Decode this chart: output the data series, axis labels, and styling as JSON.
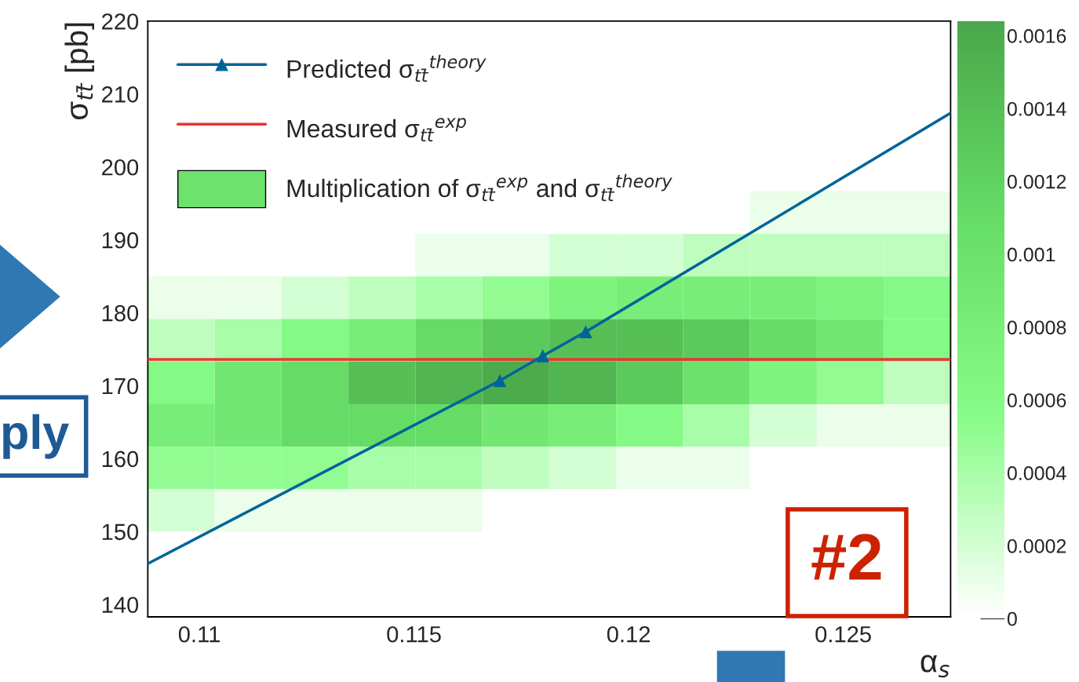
{
  "chart_data": [
    {
      "type": "line",
      "xlabel": "α$_{s}$",
      "ylabel": "σ$_{tt̄}$ [pb]",
      "xlim": [
        0.1088,
        0.1275
      ],
      "ylim": [
        138.3,
        220
      ],
      "xticks": [
        0.11,
        0.115,
        0.12,
        0.125
      ],
      "yticks": [
        140,
        150,
        160,
        170,
        180,
        190,
        200,
        210,
        220
      ],
      "legend": "top left",
      "grid": false,
      "series": [
        {
          "type": "line",
          "name": "Predicted σ$_{tt̄}$$^{theory}$",
          "color": "#00649a",
          "marker": "triangle",
          "x": [
            0.1088,
            0.117,
            0.118,
            0.119,
            0.1275
          ],
          "values": [
            145.6,
            170.7,
            174.1,
            177.4,
            207.4
          ]
        }
      ],
      "ref_lines": [
        {
          "axis": "y",
          "value": 173.6,
          "label": "Measured σ$_{tt̄}$$^{exp}$",
          "color": "#ee3333"
        }
      ],
      "annotations": [
        "Multiplication of σ$_{tt̄}$$^{exp}$ and σ$_{tt̄}$$^{theory}$",
        "ply",
        "#2"
      ]
    },
    {
      "type": "heatmap",
      "clim": [
        0,
        0.00164
      ],
      "cticks": [
        0,
        0.0002,
        0.0004,
        0.0006,
        0.0008,
        0.001,
        0.0012,
        0.0014,
        0.0016
      ],
      "categories": [
        null,
        null,
        null,
        null,
        null,
        null,
        null,
        null,
        null,
        null,
        null,
        null
      ],
      "y_categories": [
        null,
        null,
        null,
        null,
        null,
        null,
        null,
        null,
        null,
        null,
        null,
        null,
        null,
        null
      ],
      "cells": [
        [
          0,
          0,
          0,
          0,
          0,
          0,
          0,
          0,
          0,
          0,
          0,
          0
        ],
        [
          0,
          0,
          0,
          0,
          0,
          0,
          0,
          0,
          0,
          0,
          0,
          0
        ],
        [
          0,
          0,
          0,
          0,
          0,
          0,
          0,
          0,
          0,
          0,
          0,
          0
        ],
        [
          0,
          0,
          0,
          0,
          0,
          0,
          0,
          0,
          0,
          0,
          0,
          0
        ],
        [
          0,
          0,
          0,
          0,
          0,
          0,
          0,
          0,
          0,
          0.0001,
          0.0001,
          0.0001
        ],
        [
          0,
          0,
          0,
          0,
          0.0001,
          0.0001,
          0.0002,
          0.0002,
          0.0003,
          0.0003,
          0.0003,
          0.0003
        ],
        [
          0.0001,
          0.0001,
          0.0002,
          0.0003,
          0.0004,
          0.0005,
          0.0007,
          0.0008,
          0.0008,
          0.0008,
          0.0007,
          0.0006
        ],
        [
          0.0003,
          0.0004,
          0.0006,
          0.0008,
          0.0011,
          0.0013,
          0.0014,
          0.0014,
          0.0013,
          0.0011,
          0.0009,
          0.0006
        ],
        [
          0.0006,
          0.0009,
          0.0011,
          0.0014,
          0.0015,
          0.0016,
          0.0015,
          0.0013,
          0.001,
          0.0007,
          0.0005,
          0.0003
        ],
        [
          0.0008,
          0.0009,
          0.0011,
          0.0011,
          0.0011,
          0.0009,
          0.0008,
          0.0006,
          0.0004,
          0.0002,
          0.0001,
          0.0001
        ],
        [
          0.0005,
          0.0005,
          0.0005,
          0.0004,
          0.0004,
          0.0003,
          0.0002,
          0.0001,
          0.0001,
          0,
          0,
          0
        ],
        [
          0.0002,
          0.0001,
          0.0001,
          0.0001,
          0.0001,
          0,
          0,
          0,
          0,
          0,
          0,
          0
        ],
        [
          0,
          0,
          0,
          0,
          0,
          0,
          0,
          0,
          0,
          0,
          0,
          0
        ],
        [
          0,
          0,
          0,
          0,
          0,
          0,
          0,
          0,
          0,
          0,
          0,
          0
        ]
      ]
    }
  ]
}
